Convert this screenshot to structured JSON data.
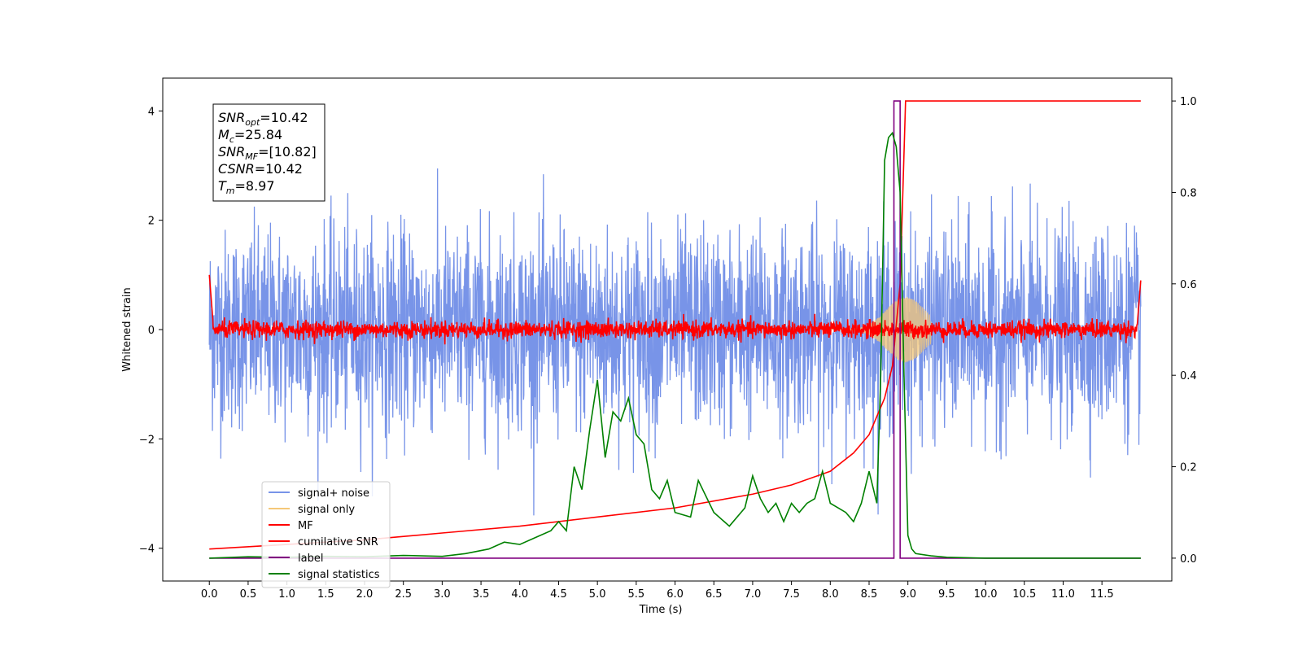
{
  "chart_data": {
    "type": "line",
    "title": "",
    "xlabel": "Time (s)",
    "ylabel": "Whitened strain",
    "y2label": "",
    "xlim": [
      -0.6,
      12.4
    ],
    "ylim": [
      -4.6,
      4.6
    ],
    "y2lim": [
      -0.05,
      1.05
    ],
    "x_ticks": [
      "0.0",
      "0.5",
      "1.0",
      "1.5",
      "2.0",
      "2.5",
      "3.0",
      "3.5",
      "4.0",
      "4.5",
      "5.0",
      "5.5",
      "6.0",
      "6.5",
      "7.0",
      "7.5",
      "8.0",
      "8.5",
      "9.0",
      "9.5",
      "10.0",
      "10.5",
      "11.0",
      "11.5"
    ],
    "y_ticks": [
      "-4",
      "-2",
      "0",
      "2",
      "4"
    ],
    "y2_ticks": [
      "0.0",
      "0.2",
      "0.4",
      "0.6",
      "0.8",
      "1.0"
    ],
    "grid": false,
    "legend_position": "lower-left",
    "info_box": [
      {
        "sym": "SNR",
        "sub": "opt",
        "val": "=10.42"
      },
      {
        "sym": "M",
        "sub": "c",
        "val": "=25.84"
      },
      {
        "sym": "SNR",
        "sub": "MF",
        "val": "=[10.82]"
      },
      {
        "sym": "CSNR",
        "sub": "",
        "val": "=10.42"
      },
      {
        "sym": "T",
        "sub": "m",
        "val": "=8.97"
      }
    ],
    "series": [
      {
        "name": "signal+ noise",
        "axis": "left",
        "color": "#7894e8",
        "style": "noise",
        "amplitude": 3.4,
        "x_range": [
          0,
          12
        ]
      },
      {
        "name": "signal only",
        "axis": "left",
        "color": "#f5c878",
        "style": "chirp",
        "peak_time": 8.97,
        "peak_amplitude": 0.6
      },
      {
        "name": "MF",
        "axis": "left",
        "color": "#ff0000",
        "style": "mf",
        "level": 0.0
      },
      {
        "name": "cumilative SNR",
        "axis": "right",
        "color": "#ff0000",
        "x": [
          0,
          1,
          2,
          3,
          4,
          5,
          6,
          7,
          7.5,
          8,
          8.3,
          8.5,
          8.7,
          8.8,
          8.9,
          8.97,
          9.0,
          12
        ],
        "y": [
          0.02,
          0.03,
          0.04,
          0.055,
          0.07,
          0.09,
          0.11,
          0.14,
          0.16,
          0.19,
          0.23,
          0.27,
          0.35,
          0.42,
          0.6,
          1.0,
          1.0,
          1.0
        ]
      },
      {
        "name": "label",
        "axis": "right",
        "color": "#800080",
        "x": [
          0,
          8.82,
          8.82,
          8.9,
          8.9,
          9.0,
          9.0,
          12
        ],
        "y": [
          0.0,
          0.0,
          1.0,
          1.0,
          0.0,
          0.0,
          0.0,
          0.0
        ]
      },
      {
        "name": "signal statistics",
        "axis": "right",
        "color": "#008000",
        "x": [
          0,
          0.5,
          1,
          1.5,
          2,
          2.5,
          3,
          3.3,
          3.6,
          3.8,
          4.0,
          4.2,
          4.4,
          4.5,
          4.6,
          4.7,
          4.8,
          4.9,
          5.0,
          5.1,
          5.2,
          5.3,
          5.4,
          5.5,
          5.6,
          5.7,
          5.8,
          5.9,
          6.0,
          6.2,
          6.3,
          6.5,
          6.7,
          6.9,
          7.0,
          7.1,
          7.2,
          7.3,
          7.4,
          7.5,
          7.6,
          7.7,
          7.8,
          7.9,
          8.0,
          8.1,
          8.2,
          8.3,
          8.4,
          8.5,
          8.6,
          8.65,
          8.7,
          8.75,
          8.8,
          8.85,
          8.9,
          8.95,
          9.0,
          9.05,
          9.1,
          9.3,
          9.5,
          10,
          11,
          12
        ],
        "y": [
          0.0,
          0.003,
          0.002,
          0.004,
          0.003,
          0.006,
          0.004,
          0.01,
          0.02,
          0.035,
          0.03,
          0.045,
          0.06,
          0.08,
          0.06,
          0.2,
          0.15,
          0.28,
          0.39,
          0.22,
          0.32,
          0.3,
          0.35,
          0.27,
          0.25,
          0.15,
          0.13,
          0.17,
          0.1,
          0.09,
          0.17,
          0.1,
          0.07,
          0.11,
          0.18,
          0.13,
          0.1,
          0.12,
          0.08,
          0.12,
          0.1,
          0.12,
          0.13,
          0.19,
          0.12,
          0.11,
          0.1,
          0.08,
          0.12,
          0.19,
          0.12,
          0.4,
          0.87,
          0.92,
          0.93,
          0.9,
          0.8,
          0.4,
          0.05,
          0.02,
          0.01,
          0.005,
          0.002,
          0.0,
          0.0,
          0.0
        ]
      }
    ]
  }
}
